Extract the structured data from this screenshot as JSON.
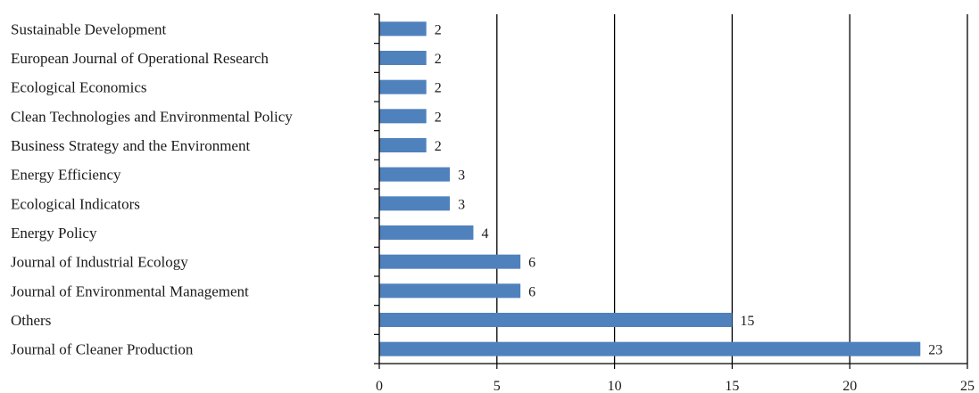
{
  "chart_data": {
    "type": "bar",
    "orientation": "horizontal",
    "categories": [
      "Sustainable Development",
      "European Journal of Operational Research",
      "Ecological Economics",
      "Clean Technologies and Environmental Policy",
      "Business Strategy and the Environment",
      "Energy Efficiency",
      "Ecological Indicators",
      "Energy Policy",
      "Journal of Industrial Ecology",
      "Journal of Environmental Management",
      "Others",
      "Journal of Cleaner Production"
    ],
    "values": [
      2,
      2,
      2,
      2,
      2,
      3,
      3,
      4,
      6,
      6,
      15,
      23
    ],
    "xlim": [
      0,
      25
    ],
    "xticks": [
      "0",
      "5",
      "10",
      "15",
      "20",
      "25"
    ],
    "grid": "vertical",
    "legend": "none",
    "title": "",
    "xlabel": "",
    "ylabel": "",
    "colors": {
      "bar": "#4f81bd",
      "grid": "#000000",
      "axis": "#000000"
    }
  }
}
